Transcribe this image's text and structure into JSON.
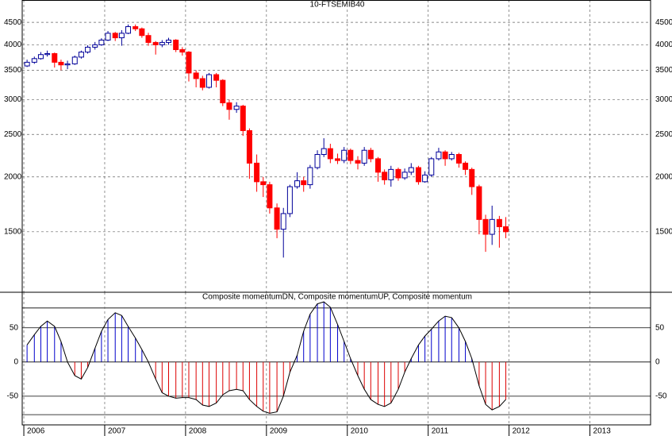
{
  "chart_data": [
    {
      "type": "candlestick",
      "title": "10-FTSEMIB40",
      "log": true,
      "grid": true,
      "up_color": "#ffffff",
      "up_border": "#000099",
      "down_color": "#ff0000",
      "xlim": [
        2005.98,
        2013.75
      ],
      "ylim": [
        1092,
        5060
      ],
      "yticks": [
        1500,
        2000,
        2500,
        3000,
        3500,
        4000,
        4500
      ],
      "x": [
        2006.04,
        2006.13,
        2006.21,
        2006.29,
        2006.38,
        2006.46,
        2006.54,
        2006.63,
        2006.71,
        2006.79,
        2006.88,
        2006.96,
        2007.04,
        2007.13,
        2007.21,
        2007.29,
        2007.38,
        2007.46,
        2007.54,
        2007.63,
        2007.71,
        2007.79,
        2007.88,
        2007.96,
        2008.04,
        2008.13,
        2008.21,
        2008.29,
        2008.38,
        2008.46,
        2008.54,
        2008.63,
        2008.71,
        2008.79,
        2008.88,
        2008.96,
        2009.04,
        2009.13,
        2009.21,
        2009.29,
        2009.38,
        2009.46,
        2009.54,
        2009.63,
        2009.71,
        2009.79,
        2009.88,
        2009.96,
        2010.04,
        2010.13,
        2010.21,
        2010.29,
        2010.38,
        2010.46,
        2010.54,
        2010.63,
        2010.71,
        2010.79,
        2010.88,
        2010.96,
        2011.04,
        2011.13,
        2011.21,
        2011.29,
        2011.38,
        2011.46,
        2011.54,
        2011.63,
        2011.71,
        2011.79,
        2011.88,
        2011.96
      ],
      "open": [
        3580,
        3650,
        3720,
        3800,
        3820,
        3650,
        3600,
        3620,
        3750,
        3850,
        3950,
        4000,
        4100,
        4250,
        4150,
        4250,
        4400,
        4350,
        4200,
        4050,
        4000,
        4050,
        4100,
        3900,
        3850,
        3450,
        3350,
        3200,
        3420,
        3320,
        2950,
        2850,
        2900,
        2550,
        2150,
        1950,
        1920,
        1700,
        1520,
        1650,
        1900,
        1960,
        1920,
        2100,
        2250,
        2320,
        2200,
        2180,
        2300,
        2180,
        2150,
        2300,
        2200,
        2050,
        1970,
        2080,
        1990,
        2050,
        2100,
        1950,
        2020,
        2200,
        2280,
        2200,
        2250,
        2150,
        2080,
        1900,
        1600,
        1480,
        1600,
        1540
      ],
      "high": [
        3700,
        3760,
        3850,
        3880,
        3840,
        3700,
        3680,
        3780,
        3880,
        3990,
        4060,
        4140,
        4300,
        4280,
        4320,
        4450,
        4450,
        4380,
        4260,
        4080,
        4100,
        4150,
        4120,
        3950,
        3870,
        3500,
        3400,
        3450,
        3450,
        3340,
        3000,
        2960,
        2920,
        2580,
        2250,
        2000,
        1950,
        1740,
        1700,
        1920,
        2050,
        2000,
        2130,
        2300,
        2450,
        2380,
        2260,
        2340,
        2320,
        2230,
        2340,
        2330,
        2220,
        2080,
        2120,
        2100,
        2090,
        2150,
        2120,
        2060,
        2220,
        2330,
        2300,
        2280,
        2270,
        2170,
        2100,
        1920,
        1640,
        1720,
        1630,
        1620
      ],
      "low": [
        3560,
        3620,
        3700,
        3760,
        3550,
        3500,
        3520,
        3600,
        3720,
        3820,
        3900,
        3980,
        4080,
        4080,
        3980,
        4230,
        4300,
        4150,
        3980,
        3800,
        3950,
        4000,
        3850,
        3780,
        3300,
        3200,
        3150,
        3180,
        3200,
        2900,
        2700,
        2800,
        2480,
        1980,
        1850,
        1800,
        1650,
        1450,
        1310,
        1620,
        1880,
        1850,
        1880,
        2080,
        2220,
        2150,
        2140,
        2150,
        2140,
        2080,
        2120,
        2160,
        1950,
        1920,
        1900,
        1960,
        1970,
        2020,
        1920,
        1940,
        2000,
        2180,
        2120,
        2180,
        2100,
        2020,
        1820,
        1480,
        1350,
        1400,
        1380,
        1450
      ],
      "close": [
        3650,
        3720,
        3800,
        3820,
        3650,
        3600,
        3620,
        3750,
        3850,
        3950,
        4000,
        4100,
        4250,
        4150,
        4250,
        4400,
        4350,
        4200,
        4050,
        4000,
        4050,
        4100,
        3900,
        3850,
        3450,
        3350,
        3200,
        3420,
        3320,
        2950,
        2850,
        2900,
        2550,
        2150,
        1950,
        1920,
        1700,
        1520,
        1650,
        1900,
        1960,
        1920,
        2100,
        2250,
        2320,
        2200,
        2180,
        2300,
        2180,
        2150,
        2300,
        2200,
        2050,
        1970,
        2080,
        1990,
        2050,
        2100,
        1950,
        2020,
        2200,
        2280,
        2200,
        2250,
        2150,
        2080,
        1900,
        1600,
        1480,
        1600,
        1540,
        1500
      ]
    },
    {
      "type": "momentum",
      "title": "Composite momentumDN, Composite momentumUP, Composite momentum",
      "color": "#000000",
      "up_color": "#0000cc",
      "down_color": "#dd0000",
      "xlim": [
        2005.98,
        2013.75
      ],
      "xticks": [
        2006,
        2007,
        2008,
        2009,
        2010,
        2011,
        2012,
        2013
      ],
      "ylim": [
        -92,
        102
      ],
      "yticks": [
        -50,
        0,
        50
      ],
      "levels": [
        79,
        -77
      ],
      "x": [
        2006.04,
        2006.13,
        2006.21,
        2006.29,
        2006.38,
        2006.46,
        2006.54,
        2006.63,
        2006.71,
        2006.79,
        2006.88,
        2006.96,
        2007.04,
        2007.13,
        2007.21,
        2007.29,
        2007.38,
        2007.46,
        2007.54,
        2007.63,
        2007.71,
        2007.79,
        2007.88,
        2007.96,
        2008.04,
        2008.13,
        2008.21,
        2008.29,
        2008.38,
        2008.46,
        2008.54,
        2008.63,
        2008.71,
        2008.79,
        2008.88,
        2008.96,
        2009.04,
        2009.13,
        2009.21,
        2009.29,
        2009.38,
        2009.46,
        2009.54,
        2009.63,
        2009.71,
        2009.79,
        2009.88,
        2009.96,
        2010.04,
        2010.13,
        2010.21,
        2010.29,
        2010.38,
        2010.46,
        2010.54,
        2010.63,
        2010.71,
        2010.79,
        2010.88,
        2010.96,
        2011.04,
        2011.13,
        2011.21,
        2011.29,
        2011.38,
        2011.46,
        2011.54,
        2011.63,
        2011.71,
        2011.79,
        2011.88,
        2011.96
      ],
      "values": [
        25,
        40,
        52,
        60,
        52,
        30,
        0,
        -20,
        -25,
        -8,
        20,
        45,
        62,
        72,
        68,
        52,
        35,
        18,
        0,
        -25,
        -45,
        -50,
        -53,
        -52,
        -52,
        -55,
        -63,
        -65,
        -60,
        -48,
        -42,
        -40,
        -42,
        -55,
        -65,
        -72,
        -75,
        -73,
        -50,
        -15,
        10,
        45,
        70,
        85,
        88,
        80,
        55,
        30,
        5,
        -20,
        -40,
        -55,
        -62,
        -65,
        -60,
        -40,
        -15,
        5,
        25,
        38,
        48,
        60,
        67,
        65,
        50,
        30,
        5,
        -35,
        -62,
        -70,
        -65,
        -55
      ]
    }
  ]
}
